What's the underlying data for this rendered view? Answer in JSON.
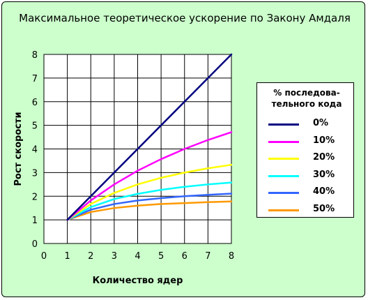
{
  "chart_data": {
    "type": "line",
    "title": "Максимальное теоретическое ускорение по Закону Амдаля",
    "xlabel": "Количество ядер",
    "ylabel": "Рост скорости",
    "xlim": [
      0,
      8
    ],
    "ylim": [
      0,
      8
    ],
    "x_ticks": [
      "0",
      "1",
      "2",
      "3",
      "4",
      "5",
      "6",
      "7",
      "8"
    ],
    "y_ticks": [
      "0",
      "1",
      "2",
      "3",
      "4",
      "5",
      "6",
      "7",
      "8"
    ],
    "grid": true,
    "legend_position": "right",
    "legend_title": "% последова-\nтельного кода",
    "x": [
      1,
      2,
      3,
      4,
      5,
      6,
      7,
      8
    ],
    "series": [
      {
        "name": "0%",
        "color": "#000080",
        "values": [
          1,
          2.0,
          3.0,
          4.0,
          5.0,
          6.0,
          7.0,
          8.0
        ]
      },
      {
        "name": "10%",
        "color": "#ff00ff",
        "values": [
          1,
          1.82,
          2.5,
          3.08,
          3.57,
          4.0,
          4.38,
          4.71
        ]
      },
      {
        "name": "20%",
        "color": "#ffff00",
        "values": [
          1,
          1.67,
          2.14,
          2.5,
          2.78,
          3.0,
          3.18,
          3.33
        ]
      },
      {
        "name": "30%",
        "color": "#00ffff",
        "values": [
          1,
          1.54,
          1.88,
          2.1,
          2.27,
          2.4,
          2.5,
          2.58
        ]
      },
      {
        "name": "40%",
        "color": "#3366ff",
        "values": [
          1,
          1.43,
          1.67,
          1.82,
          1.92,
          2.0,
          2.06,
          2.11
        ]
      },
      {
        "name": "50%",
        "color": "#ff9900",
        "values": [
          1,
          1.33,
          1.5,
          1.6,
          1.67,
          1.71,
          1.75,
          1.78
        ]
      }
    ]
  }
}
